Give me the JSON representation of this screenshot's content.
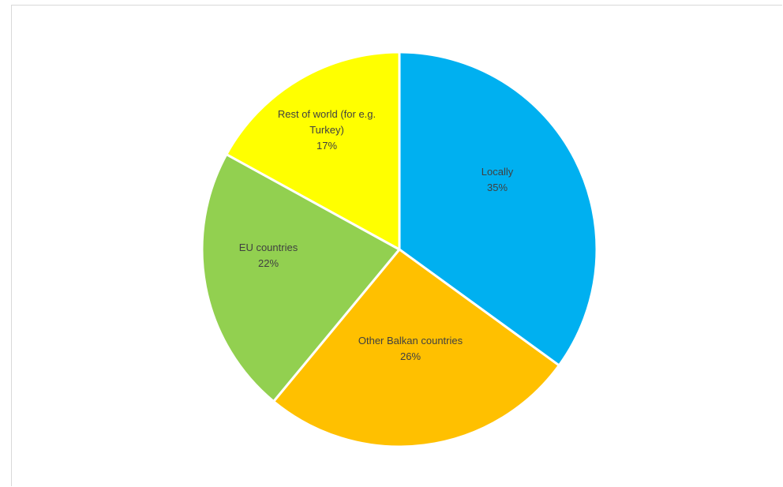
{
  "chart_data": {
    "type": "pie",
    "title": "",
    "slices": [
      {
        "label": "Locally",
        "value": 35,
        "percent_label": "35%",
        "color": "#00B0F0"
      },
      {
        "label": "Other Balkan countries",
        "value": 26,
        "percent_label": "26%",
        "color": "#FFC000"
      },
      {
        "label": "EU countries",
        "value": 22,
        "percent_label": "22%",
        "color": "#92D050"
      },
      {
        "label": "Rest of world (for e.g. Turkey)",
        "value": 17,
        "percent_label": "17%",
        "color": "#FFFF00"
      }
    ],
    "legend": "none",
    "start_angle": "12 o'clock, clockwise"
  }
}
